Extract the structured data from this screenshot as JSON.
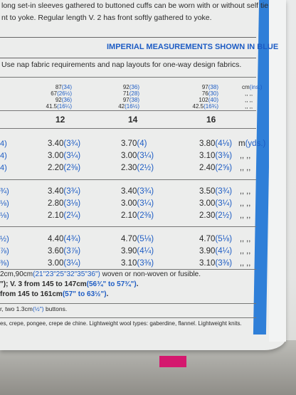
{
  "header": {
    "line1": "long set-in sleeves gathered to buttoned cuffs can be worn with or without self tie",
    "line2": "nt to yoke. Regular length V. 2 has front softly gathered to yoke.",
    "imperial_note": "IMPERIAL MEASUREMENTS SHOWN IN BLUE",
    "nap_note": "Use nap fabric requirements and nap layouts for one-way design fabrics."
  },
  "measurements": {
    "columns": [
      [
        {
          "cm": "87",
          "in": "(34)"
        },
        {
          "cm": "67",
          "in": "(26½)"
        },
        {
          "cm": "92",
          "in": "(36)"
        },
        {
          "cm": "41.5",
          "in": "(16¼)"
        }
      ],
      [
        {
          "cm": "92",
          "in": "(36)"
        },
        {
          "cm": "71",
          "in": "(28)"
        },
        {
          "cm": "97",
          "in": "(38)"
        },
        {
          "cm": "42",
          "in": "(16½)"
        }
      ],
      [
        {
          "cm": "97",
          "in": "(38)"
        },
        {
          "cm": "76",
          "in": "(30)"
        },
        {
          "cm": "102",
          "in": "(40)"
        },
        {
          "cm": "42.5",
          "in": "(16¾)"
        }
      ]
    ],
    "unit": {
      "cm": "cm",
      "in": "(ins.)"
    },
    "ditto": ",,  ,,"
  },
  "sizes": [
    "12",
    "14",
    "16"
  ],
  "yardage": {
    "unit": {
      "m": "m",
      "yds": "(yds.)"
    },
    "ditto": ",,   ,,",
    "groups": [
      {
        "fragments": [
          "4)",
          "4)",
          "4)"
        ],
        "rows": [
          [
            {
              "m": "3.40",
              "y": "(3¾)"
            },
            {
              "m": "3.70",
              "y": "(4)"
            },
            {
              "m": "3.80",
              "y": "(4⅛)"
            }
          ],
          [
            {
              "m": "3.00",
              "y": "(3¼)"
            },
            {
              "m": "3.00",
              "y": "(3¼)"
            },
            {
              "m": "3.10",
              "y": "(3⅜)"
            }
          ],
          [
            {
              "m": "2.20",
              "y": "(2⅜)"
            },
            {
              "m": "2.30",
              "y": "(2½)"
            },
            {
              "m": "2.40",
              "y": "(2⅝)"
            }
          ]
        ]
      },
      {
        "fragments": [
          "¾)",
          "⅛)",
          "⅛)"
        ],
        "rows": [
          [
            {
              "m": "3.40",
              "y": "(3¾)"
            },
            {
              "m": "3.40",
              "y": "(3¾)"
            },
            {
              "m": "3.50",
              "y": "(3¾)"
            }
          ],
          [
            {
              "m": "2.80",
              "y": "(3⅛)"
            },
            {
              "m": "3.00",
              "y": "(3¼)"
            },
            {
              "m": "3.00",
              "y": "(3¼)"
            }
          ],
          [
            {
              "m": "2.10",
              "y": "(2¼)"
            },
            {
              "m": "2.10",
              "y": "(2⅜)"
            },
            {
              "m": "2.30",
              "y": "(2½)"
            }
          ]
        ]
      },
      {
        "fragments": [
          "½)",
          "⅞)",
          "⅜)"
        ],
        "rows": [
          [
            {
              "m": "4.40",
              "y": "(4¾)"
            },
            {
              "m": "4.70",
              "y": "(5⅛)"
            },
            {
              "m": "4.70",
              "y": "(5⅛)"
            }
          ],
          [
            {
              "m": "3.60",
              "y": "(3⅞)"
            },
            {
              "m": "3.90",
              "y": "(4¼)"
            },
            {
              "m": "3.90",
              "y": "(4¼)"
            }
          ],
          [
            {
              "m": "3.00",
              "y": "(3¼)"
            },
            {
              "m": "3.10",
              "y": "(3⅜)"
            },
            {
              "m": "3.10",
              "y": "(3⅜)"
            }
          ]
        ]
      }
    ]
  },
  "notes": [
    [
      {
        "text": "2cm,90cm"
      },
      {
        "text": "(21\"23\"25\"32\"35\"36\")",
        "color": "#1d5cc4"
      },
      {
        "text": " woven or non-woven or fusible."
      }
    ],
    [
      {
        "text": "\"); V. 3 from 145 to 147cm"
      },
      {
        "text": "(56¾\" to 57¾\")",
        "color": "#1d5cc4"
      },
      {
        "text": "."
      }
    ],
    [
      {
        "text": " from 145 to 161cm"
      },
      {
        "text": "(57\" to 63½\")",
        "color": "#1d5cc4"
      },
      {
        "text": "."
      }
    ],
    [
      {
        "text": "r, two 1.3cm"
      },
      {
        "text": "(½\")",
        "color": "#1d5cc4"
      },
      {
        "text": " buttons."
      }
    ],
    [
      {
        "text": "es, crepe, pongee, crepe de chine. Lightweight wool types: gaberdine, flannel. Lightweight knits."
      }
    ]
  ]
}
